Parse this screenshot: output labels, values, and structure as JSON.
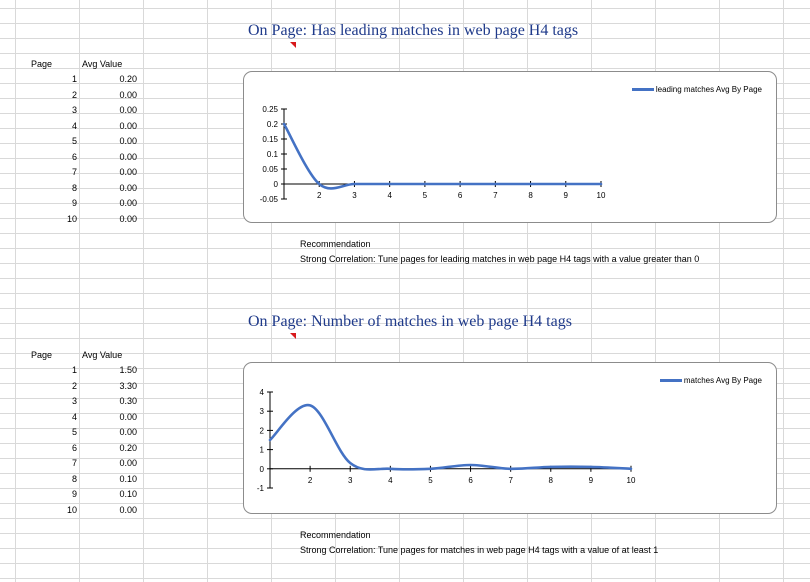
{
  "sections": [
    {
      "title": "On Page: Has leading matches in web page H4 tags",
      "table": {
        "headers": [
          "Page",
          "Avg Value"
        ],
        "rows": [
          [
            "1",
            "0.20"
          ],
          [
            "2",
            "0.00"
          ],
          [
            "3",
            "0.00"
          ],
          [
            "4",
            "0.00"
          ],
          [
            "5",
            "0.00"
          ],
          [
            "6",
            "0.00"
          ],
          [
            "7",
            "0.00"
          ],
          [
            "8",
            "0.00"
          ],
          [
            "9",
            "0.00"
          ],
          [
            "10",
            "0.00"
          ]
        ]
      },
      "recommendation": {
        "label": "Recommendation",
        "text": "Strong Correlation: Tune pages for leading matches in web page H4 tags with a value greater than 0"
      }
    },
    {
      "title": "On Page: Number of matches in web page H4 tags",
      "table": {
        "headers": [
          "Page",
          "Avg Value"
        ],
        "rows": [
          [
            "1",
            "1.50"
          ],
          [
            "2",
            "3.30"
          ],
          [
            "3",
            "0.30"
          ],
          [
            "4",
            "0.00"
          ],
          [
            "5",
            "0.00"
          ],
          [
            "6",
            "0.20"
          ],
          [
            "7",
            "0.00"
          ],
          [
            "8",
            "0.10"
          ],
          [
            "9",
            "0.10"
          ],
          [
            "10",
            "0.00"
          ]
        ]
      },
      "recommendation": {
        "label": "Recommendation",
        "text": "Strong Correlation: Tune pages for matches in web page H4 tags with a value of at least 1"
      }
    }
  ],
  "chart_data": [
    {
      "type": "line",
      "smooth": true,
      "x": [
        1,
        2,
        3,
        4,
        5,
        6,
        7,
        8,
        9,
        10
      ],
      "series": [
        {
          "name": "leading matches Avg By Page",
          "values": [
            0.2,
            0,
            0,
            0,
            0,
            0,
            0,
            0,
            0,
            0
          ],
          "color": "#4472c4"
        }
      ],
      "x_tick_labels": [
        "2",
        "3",
        "4",
        "5",
        "6",
        "7",
        "8",
        "9",
        "10"
      ],
      "y_tick_labels": [
        "-0.05",
        "0",
        "0.05",
        "0.1",
        "0.15",
        "0.2",
        "0.25"
      ],
      "ylim": [
        -0.05,
        0.25
      ],
      "xlim": [
        1,
        10
      ],
      "legend_position": "top-right",
      "grid": false
    },
    {
      "type": "line",
      "smooth": true,
      "x": [
        1,
        2,
        3,
        4,
        5,
        6,
        7,
        8,
        9,
        10
      ],
      "series": [
        {
          "name": "matches Avg By Page",
          "values": [
            1.5,
            3.3,
            0.3,
            0,
            0,
            0.2,
            0,
            0.1,
            0.1,
            0
          ],
          "color": "#4472c4"
        }
      ],
      "x_tick_labels": [
        "2",
        "3",
        "4",
        "5",
        "6",
        "7",
        "8",
        "9",
        "10"
      ],
      "y_tick_labels": [
        "-1",
        "0",
        "1",
        "2",
        "3",
        "4"
      ],
      "ylim": [
        -1,
        4
      ],
      "xlim": [
        1,
        10
      ],
      "legend_position": "top-right",
      "grid": false
    }
  ]
}
